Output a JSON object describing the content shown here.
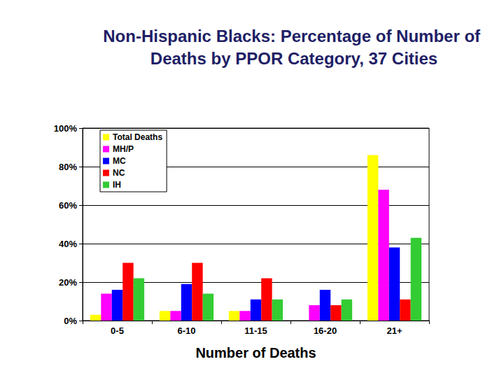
{
  "chart_data": {
    "type": "bar",
    "title": "Non-Hispanic Blacks: Percentage of Number of Deaths by PPOR Category, 37 Cities",
    "x_label": "Number of Deaths",
    "categories": [
      "0-5",
      "6-10",
      "11-15",
      "16-20",
      "21+"
    ],
    "series": [
      {
        "name": "Total Deaths",
        "color": "#ffff00",
        "values": [
          3,
          5,
          5,
          0,
          86
        ]
      },
      {
        "name": "MH/P",
        "color": "#ff00ff",
        "values": [
          14,
          5,
          5,
          8,
          68
        ]
      },
      {
        "name": "MC",
        "color": "#0000ff",
        "values": [
          16,
          19,
          11,
          16,
          38
        ]
      },
      {
        "name": "NC",
        "color": "#ff0000",
        "values": [
          30,
          30,
          22,
          8,
          11
        ]
      },
      {
        "name": "IH",
        "color": "#33cc33",
        "values": [
          22,
          14,
          11,
          11,
          43
        ]
      }
    ],
    "ylim": [
      0,
      100
    ],
    "yticks": [
      {
        "value": 0,
        "label": "0%"
      },
      {
        "value": 20,
        "label": "20%"
      },
      {
        "value": 40,
        "label": "40%"
      },
      {
        "value": 60,
        "label": "60%"
      },
      {
        "value": 80,
        "label": "80%"
      },
      {
        "value": 100,
        "label": "100%"
      }
    ],
    "grid": true,
    "legend": "upper left"
  }
}
